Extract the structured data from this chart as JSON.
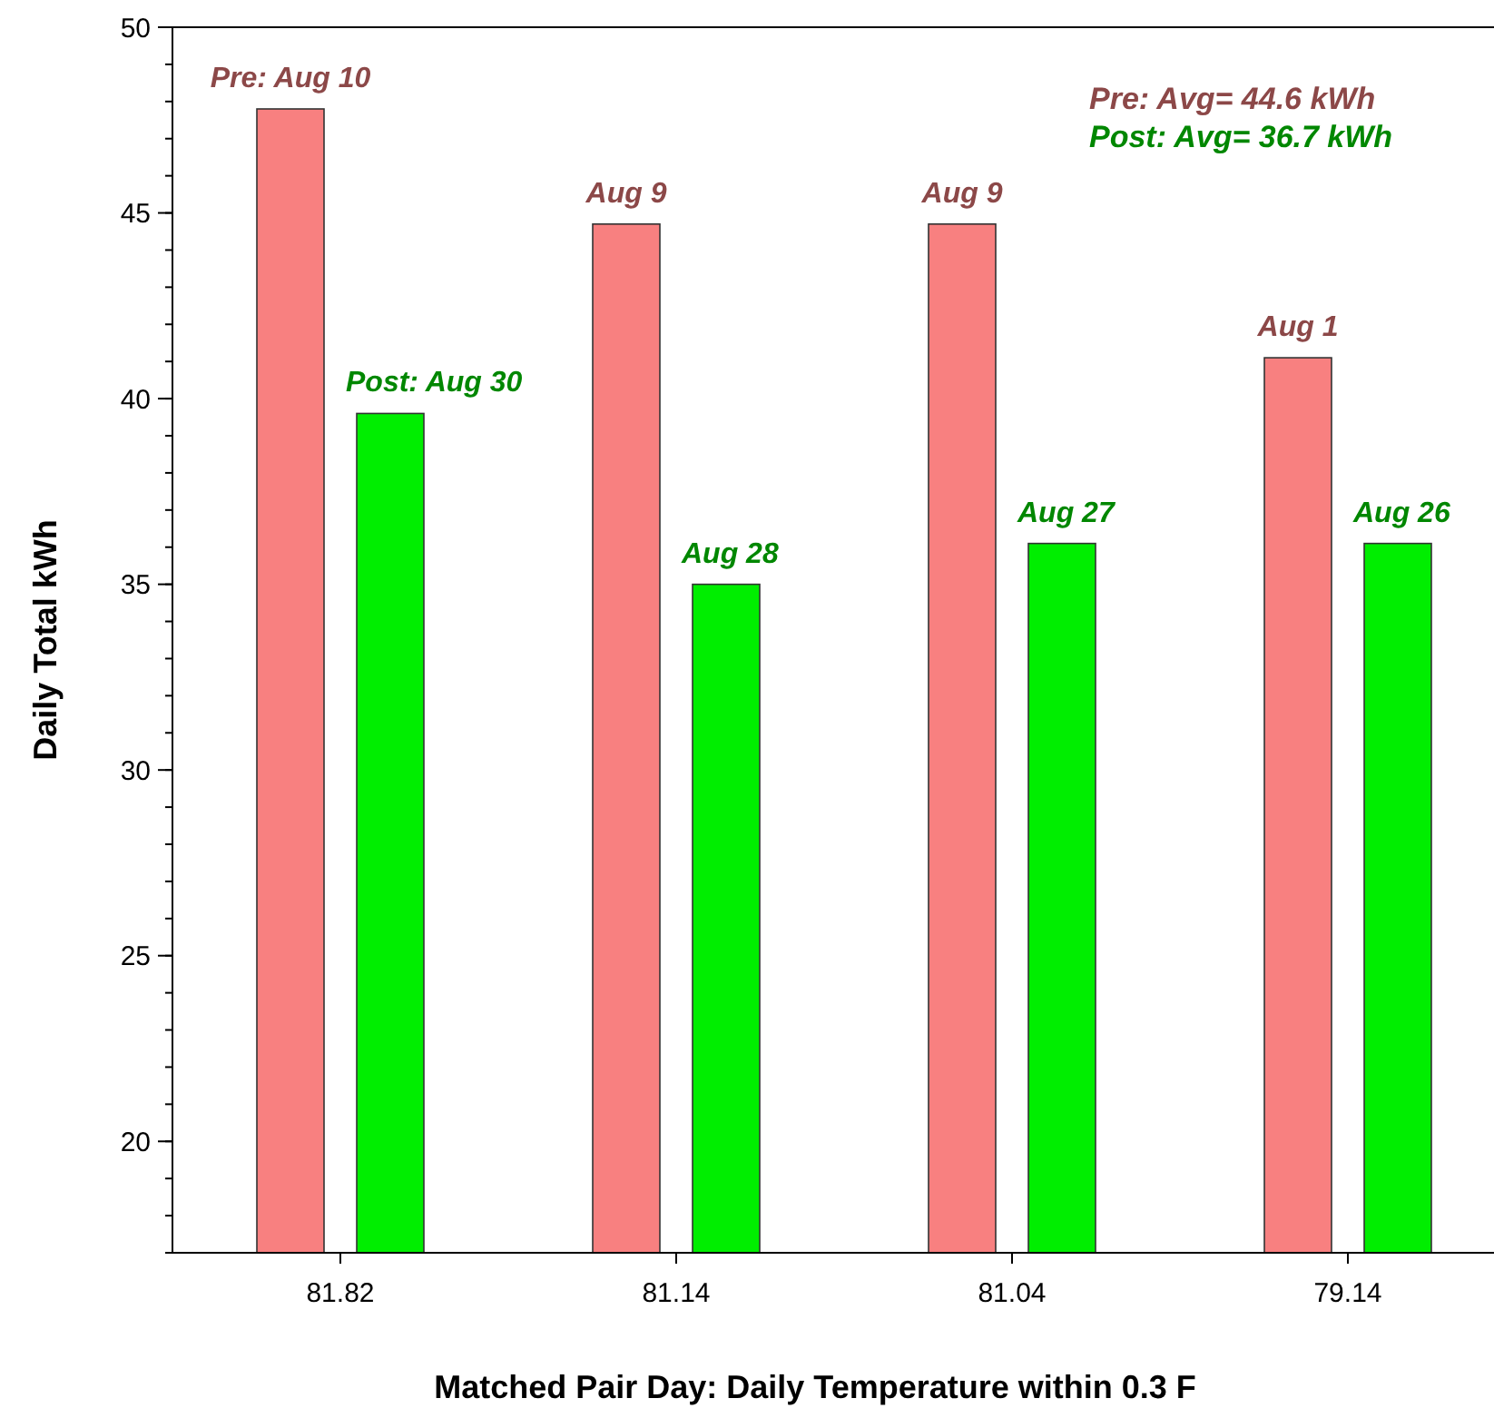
{
  "chart_data": {
    "type": "bar",
    "categories": [
      "81.82",
      "81.14",
      "81.04",
      "79.14"
    ],
    "series": [
      {
        "color": "#f88080",
        "values": [
          47.8,
          44.7,
          44.7,
          41.1
        ]
      },
      {
        "color": "#00ee00",
        "values": [
          39.6,
          35.0,
          36.1,
          36.1
        ]
      }
    ],
    "xlabel": "Matched Pair Day: Daily Temperature within 0.3 F",
    "ylabel": "Daily Total kWh",
    "ylim": [
      17,
      50
    ],
    "yticks": [
      20,
      25,
      30,
      35,
      40,
      45,
      50
    ],
    "annotations": [
      "Pre: Aug 10",
      "Post: Aug 30",
      "Aug 9",
      "Aug 28",
      "Aug 9",
      "Aug 27",
      "Aug 1",
      "Aug 26",
      "Pre: Avg= 44.6 kWh",
      "Post: Avg= 36.7 kWh"
    ]
  }
}
